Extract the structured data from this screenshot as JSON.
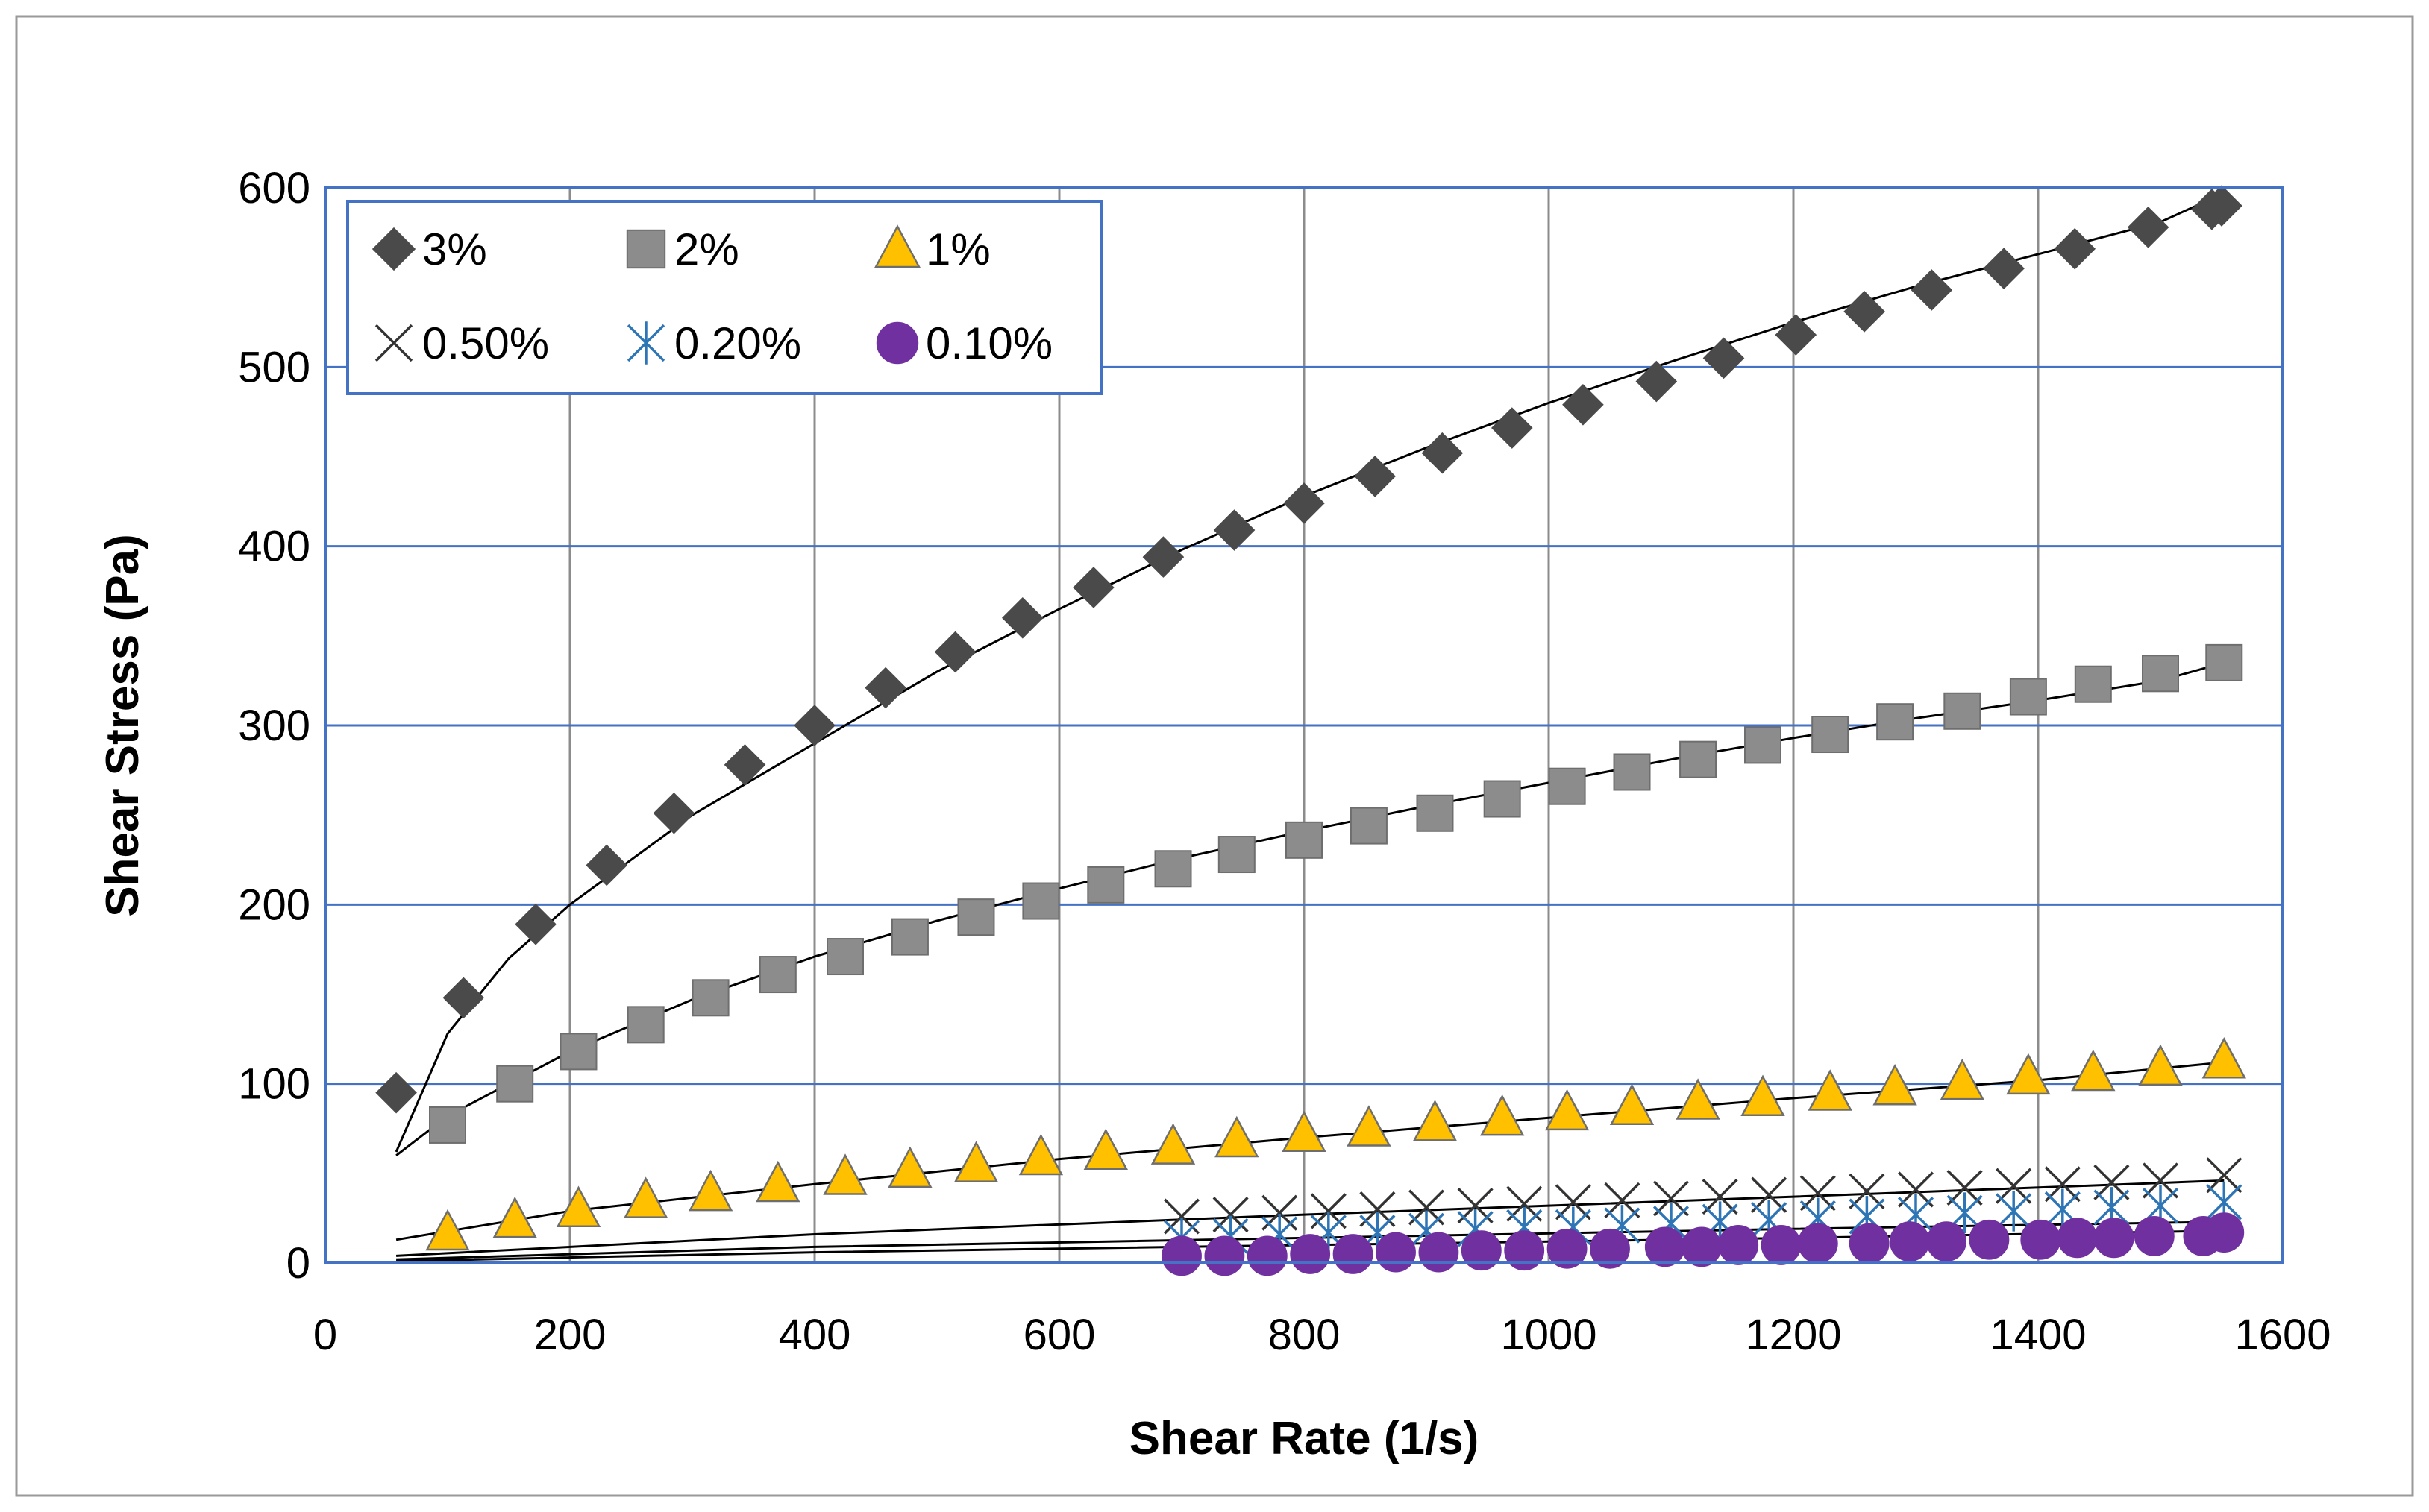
{
  "chart_data": {
    "type": "scatter",
    "title": "",
    "xlabel": "Shear Rate (1/s)",
    "ylabel": "Shear Stress (Pa)",
    "xlim": [
      0,
      1600
    ],
    "ylim": [
      0,
      600
    ],
    "xticks": [
      "0",
      "200",
      "400",
      "600",
      "800",
      "1000",
      "1200",
      "1400",
      "1600"
    ],
    "yticks": [
      "0",
      "100",
      "200",
      "300",
      "400",
      "500",
      "600"
    ],
    "legend_position": "top-left",
    "grid": true,
    "colors": {
      "plot_border": "#4472C4",
      "vertical_grid": "#8C8C8C",
      "horizontal_grid": "#4472C4",
      "trend_line": "#000000",
      "outer_border": "#9A9A9A"
    },
    "series": [
      {
        "name": "3%",
        "marker": "diamond",
        "color": "#4A4A4A",
        "x": [
          58,
          113,
          172,
          230,
          285,
          343,
          400,
          458,
          515,
          570,
          628,
          685,
          743,
          800,
          858,
          913,
          970,
          1028,
          1088,
          1143,
          1202,
          1258,
          1313,
          1372,
          1430,
          1490,
          1542,
          1550
        ],
        "y": [
          95,
          148,
          189,
          222,
          251,
          278,
          300,
          321,
          341,
          360,
          377,
          394,
          409,
          424,
          439,
          452,
          466,
          479,
          492,
          505,
          518,
          531,
          543,
          555,
          566,
          578,
          588,
          590
        ],
        "trend": [
          [
            58,
            62
          ],
          [
            100,
            128
          ],
          [
            150,
            170
          ],
          [
            200,
            200
          ],
          [
            300,
            250
          ],
          [
            400,
            290
          ],
          [
            500,
            330
          ],
          [
            600,
            365
          ],
          [
            700,
            398
          ],
          [
            800,
            428
          ],
          [
            900,
            455
          ],
          [
            1000,
            480
          ],
          [
            1100,
            503
          ],
          [
            1200,
            525
          ],
          [
            1300,
            545
          ],
          [
            1400,
            563
          ],
          [
            1500,
            581
          ],
          [
            1552,
            597
          ]
        ]
      },
      {
        "name": "2%",
        "marker": "square",
        "color": "#8C8C8C",
        "x": [
          100,
          155,
          207,
          262,
          315,
          370,
          425,
          478,
          532,
          585,
          638,
          693,
          745,
          800,
          853,
          907,
          962,
          1015,
          1068,
          1122,
          1175,
          1230,
          1283,
          1338,
          1392,
          1445,
          1500,
          1552
        ],
        "y": [
          77,
          100,
          118,
          133,
          148,
          161,
          171,
          182,
          193,
          202,
          211,
          220,
          228,
          236,
          244,
          251,
          259,
          266,
          274,
          281,
          289,
          295,
          302,
          308,
          316,
          323,
          329,
          335
        ],
        "trend": [
          [
            58,
            60
          ],
          [
            100,
            82
          ],
          [
            200,
            118
          ],
          [
            300,
            147
          ],
          [
            400,
            171
          ],
          [
            500,
            191
          ],
          [
            600,
            209
          ],
          [
            700,
            226
          ],
          [
            800,
            241
          ],
          [
            900,
            255
          ],
          [
            1000,
            268
          ],
          [
            1100,
            281
          ],
          [
            1200,
            293
          ],
          [
            1300,
            304
          ],
          [
            1400,
            314
          ],
          [
            1500,
            325
          ],
          [
            1552,
            335
          ]
        ]
      },
      {
        "name": "1%",
        "marker": "triangle",
        "color": "#FFC000",
        "x": [
          100,
          155,
          207,
          262,
          315,
          370,
          425,
          478,
          532,
          585,
          638,
          693,
          745,
          800,
          853,
          907,
          962,
          1015,
          1068,
          1122,
          1175,
          1230,
          1283,
          1338,
          1392,
          1445,
          1500,
          1552
        ],
        "y": [
          17,
          24,
          30,
          35,
          39,
          44,
          48,
          52,
          55,
          59,
          62,
          65,
          69,
          72,
          75,
          78,
          81,
          84,
          87,
          90,
          92,
          95,
          98,
          101,
          104,
          106,
          109,
          113
        ],
        "trend": [
          [
            58,
            13
          ],
          [
            200,
            29
          ],
          [
            400,
            44
          ],
          [
            600,
            58
          ],
          [
            800,
            70
          ],
          [
            1000,
            81
          ],
          [
            1200,
            92
          ],
          [
            1400,
            102
          ],
          [
            1552,
            112
          ]
        ]
      },
      {
        "name": "0.50%",
        "marker": "x",
        "color": "#333333",
        "x": [
          700,
          740,
          780,
          820,
          860,
          900,
          940,
          980,
          1020,
          1060,
          1100,
          1140,
          1180,
          1220,
          1260,
          1300,
          1340,
          1380,
          1420,
          1460,
          1500,
          1552
        ],
        "y": [
          26,
          27,
          28,
          29,
          30,
          31,
          32,
          33,
          34,
          35,
          36,
          37,
          38,
          39,
          40,
          41,
          42,
          43,
          44,
          45,
          46,
          49
        ],
        "trend": [
          [
            58,
            4
          ],
          [
            400,
            16
          ],
          [
            800,
            27
          ],
          [
            1200,
            37
          ],
          [
            1552,
            46
          ]
        ]
      },
      {
        "name": "0.20%",
        "marker": "asterisk",
        "color": "#2E75B6",
        "x": [
          700,
          740,
          780,
          820,
          860,
          900,
          940,
          980,
          1020,
          1060,
          1100,
          1140,
          1180,
          1220,
          1260,
          1300,
          1340,
          1380,
          1420,
          1460,
          1500,
          1552
        ],
        "y": [
          14,
          15,
          16,
          17,
          17,
          18,
          19,
          20,
          20,
          21,
          22,
          23,
          24,
          25,
          26,
          27,
          28,
          29,
          30,
          31,
          32,
          34
        ],
        "trend": [
          [
            58,
            2
          ],
          [
            400,
            9
          ],
          [
            800,
            14
          ],
          [
            1200,
            19
          ],
          [
            1552,
            23
          ]
        ]
      },
      {
        "name": "0.10%",
        "marker": "circle",
        "color": "#7030A0",
        "x": [
          700,
          735,
          770,
          805,
          840,
          875,
          910,
          945,
          980,
          1015,
          1050,
          1095,
          1125,
          1155,
          1190,
          1220,
          1262,
          1295,
          1325,
          1360,
          1402,
          1432,
          1462,
          1495,
          1535,
          1552
        ],
        "y": [
          4,
          4,
          4,
          5,
          5,
          6,
          6,
          7,
          7,
          8,
          8,
          9,
          9,
          10,
          10,
          11,
          11,
          12,
          12,
          13,
          13,
          14,
          14,
          15,
          15,
          17
        ],
        "trend": [
          [
            58,
            1
          ],
          [
            400,
            6
          ],
          [
            800,
            10
          ],
          [
            1200,
            14
          ],
          [
            1552,
            18
          ]
        ]
      }
    ]
  }
}
